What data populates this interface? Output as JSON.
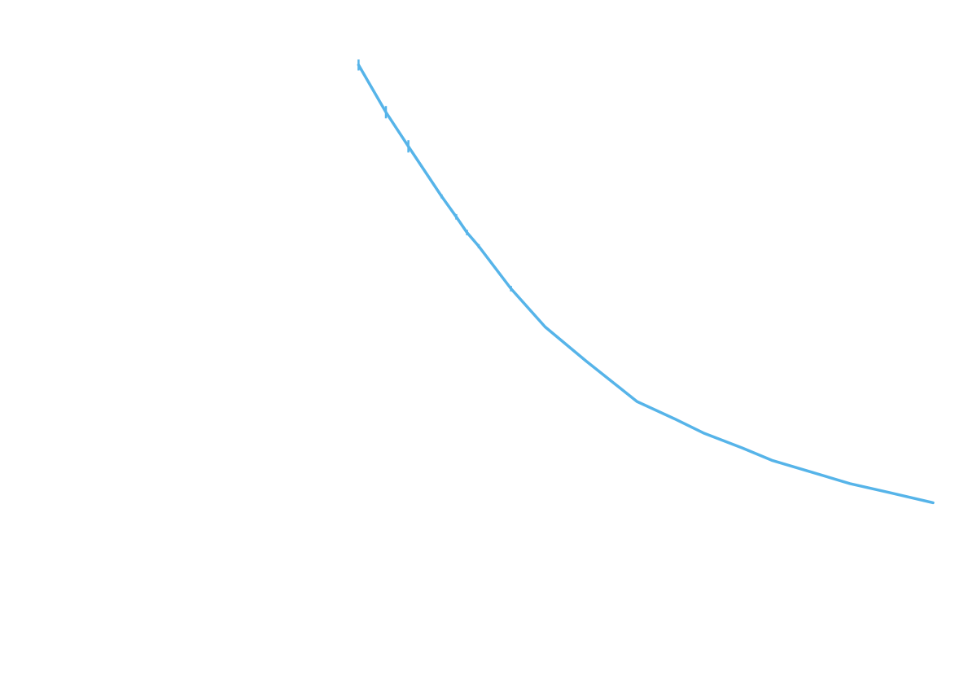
{
  "chart_data": {
    "type": "line",
    "title": "",
    "xlabel": "",
    "ylabel": "",
    "grid": false,
    "legend": "none",
    "xlim": [
      0,
      1
    ],
    "ylim": [
      0,
      1
    ],
    "series": [
      {
        "color": "#56b4e9",
        "x": [
          0.367,
          0.395,
          0.418,
          0.452,
          0.467,
          0.478,
          0.49,
          0.523,
          0.558,
          0.6,
          0.63,
          0.652,
          0.69,
          0.72,
          0.76,
          0.79,
          0.83,
          0.87,
          0.91,
          0.955
        ],
        "y": [
          0.905,
          0.836,
          0.786,
          0.713,
          0.683,
          0.66,
          0.64,
          0.578,
          0.522,
          0.472,
          0.438,
          0.413,
          0.388,
          0.367,
          0.345,
          0.327,
          0.31,
          0.293,
          0.28,
          0.265
        ],
        "error": [
          0.008,
          0.009,
          0.009,
          0.003,
          0.004,
          0.004,
          0.003,
          0.004,
          0.0,
          0.0,
          0.0,
          0.0,
          0.0,
          0.0,
          0.0,
          0.0,
          0.0,
          0.0,
          0.0,
          0.0
        ]
      }
    ]
  }
}
